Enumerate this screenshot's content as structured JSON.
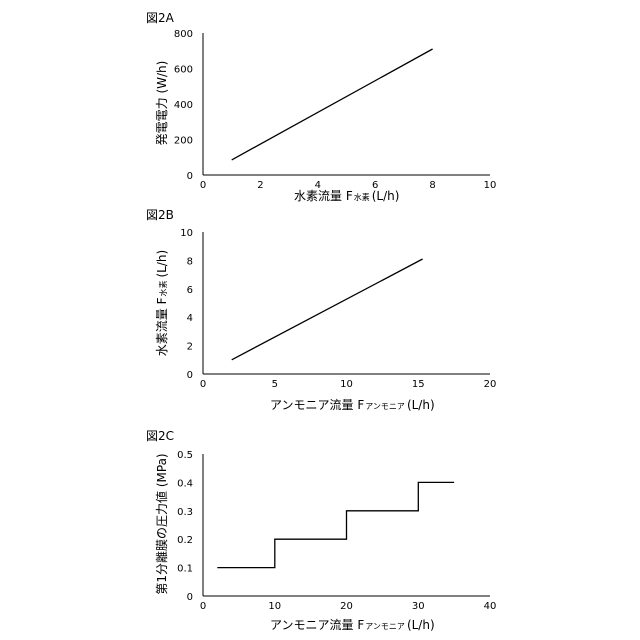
{
  "chart_data": [
    {
      "type": "line",
      "figure_label": "図2A",
      "xlabel": "水素流量 F",
      "xlabel_sub": "水素",
      "xlabel_unit": "(L/h)",
      "ylabel": "発電電力 (W/h)",
      "xlim": [
        0,
        10
      ],
      "ylim": [
        0,
        800
      ],
      "xticks": [
        0,
        2,
        4,
        6,
        8,
        10
      ],
      "yticks": [
        0,
        200,
        400,
        600,
        800
      ],
      "series": [
        {
          "x": [
            1,
            8
          ],
          "y": [
            85,
            710
          ]
        }
      ],
      "grid": false
    },
    {
      "type": "line",
      "figure_label": "図2B",
      "xlabel": "アンモニア流量 F",
      "xlabel_sub": "アンモニア",
      "xlabel_unit": "(L/h)",
      "ylabel": "水素流量 F",
      "ylabel_sub": "水素",
      "ylabel_unit": "(L/h)",
      "xlim": [
        0,
        20
      ],
      "ylim": [
        0,
        10
      ],
      "xticks": [
        0,
        5,
        10,
        15,
        20
      ],
      "yticks": [
        0,
        2,
        4,
        6,
        8,
        10
      ],
      "series": [
        {
          "x": [
            2,
            15.3
          ],
          "y": [
            1,
            8.1
          ]
        }
      ],
      "grid": false
    },
    {
      "type": "line",
      "figure_label": "図2C",
      "xlabel": "アンモニア流量 F",
      "xlabel_sub": "アンモニア",
      "xlabel_unit": "(L/h)",
      "ylabel": "第1分離膜の圧力値 (MPa)",
      "xlim": [
        0,
        40
      ],
      "ylim": [
        0,
        0.5
      ],
      "xticks": [
        0,
        10,
        20,
        30,
        40
      ],
      "yticks": [
        0,
        0.1,
        0.2,
        0.3,
        0.4,
        0.5
      ],
      "series": [
        {
          "x": [
            2,
            10,
            10,
            20,
            20,
            30,
            30,
            35
          ],
          "y": [
            0.1,
            0.1,
            0.2,
            0.2,
            0.3,
            0.3,
            0.4,
            0.4
          ]
        }
      ],
      "grid": false
    }
  ]
}
